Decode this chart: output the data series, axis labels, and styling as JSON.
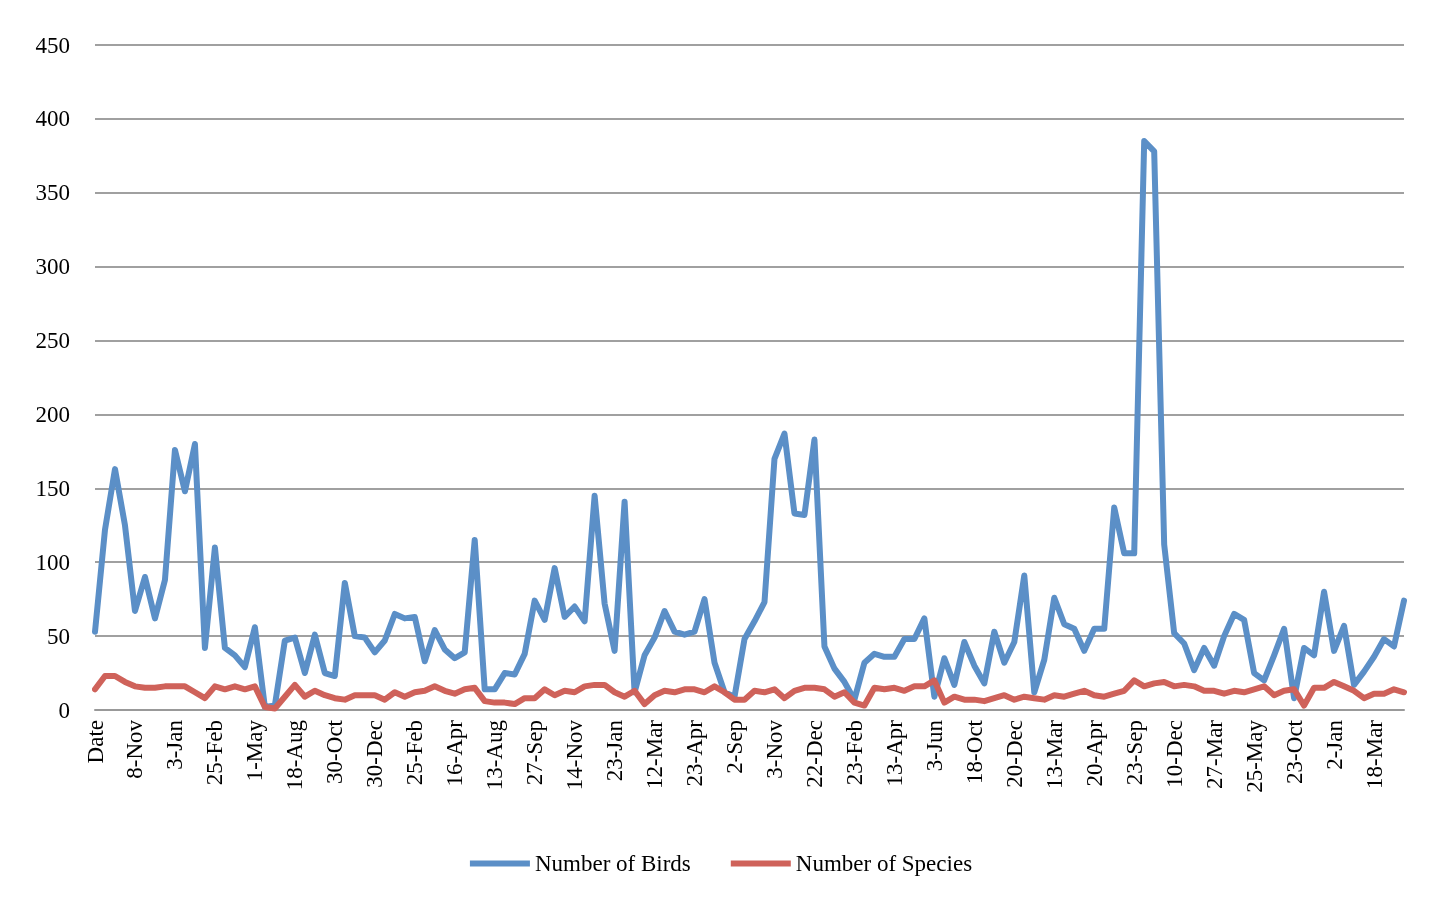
{
  "chart_data": {
    "type": "line",
    "categories": [
      "Date",
      null,
      null,
      null,
      "8-Nov",
      null,
      null,
      null,
      "3-Jan",
      null,
      null,
      null,
      "25-Feb",
      null,
      null,
      null,
      "1-May",
      null,
      null,
      null,
      "18-Aug",
      null,
      null,
      null,
      "30-Oct",
      null,
      null,
      null,
      "30-Dec",
      null,
      null,
      null,
      "25-Feb",
      null,
      null,
      null,
      "16-Apr",
      null,
      null,
      null,
      "13-Aug",
      null,
      null,
      null,
      "27-Sep",
      null,
      null,
      null,
      "14-Nov",
      null,
      null,
      null,
      "23-Jan",
      null,
      null,
      null,
      "12-Mar",
      null,
      null,
      null,
      "23-Apr",
      null,
      null,
      null,
      "2-Sep",
      null,
      null,
      null,
      "3-Nov",
      null,
      null,
      null,
      "22-Dec",
      null,
      null,
      null,
      "23-Feb",
      null,
      null,
      null,
      "13-Apr",
      null,
      null,
      null,
      "3-Jun",
      null,
      null,
      null,
      "18-Oct",
      null,
      null,
      null,
      "20-Dec",
      null,
      null,
      null,
      "13-Mar",
      null,
      null,
      null,
      "20-Apr",
      null,
      null,
      null,
      "23-Sep",
      null,
      null,
      null,
      "10-Dec",
      null,
      null,
      null,
      "27-Mar",
      null,
      null,
      null,
      "25-May",
      null,
      null,
      null,
      "23-Oct",
      null,
      null,
      null,
      "2-Jan",
      null,
      null,
      null,
      "18-Mar",
      null,
      null,
      null
    ],
    "series": [
      {
        "name": "Number of Birds",
        "color": "#5b8fc7",
        "values": [
          53,
          122,
          163,
          125,
          67,
          90,
          62,
          88,
          176,
          148,
          180,
          42,
          110,
          42,
          37,
          29,
          56,
          2,
          3,
          47,
          49,
          25,
          51,
          25,
          23,
          86,
          50,
          49,
          39,
          47,
          65,
          62,
          63,
          33,
          54,
          41,
          35,
          39,
          115,
          14,
          14,
          25,
          24,
          38,
          74,
          61,
          96,
          63,
          70,
          60,
          145,
          72,
          40,
          141,
          12,
          37,
          49,
          67,
          53,
          51,
          53,
          75,
          32,
          12,
          9,
          48,
          60,
          73,
          170,
          187,
          133,
          132,
          183,
          43,
          28,
          19,
          7,
          32,
          38,
          36,
          36,
          48,
          48,
          62,
          9,
          35,
          17,
          46,
          30,
          18,
          53,
          32,
          46,
          91,
          12,
          34,
          76,
          58,
          55,
          40,
          55,
          55,
          137,
          106,
          106,
          385,
          378,
          112,
          52,
          45,
          27,
          42,
          30,
          50,
          65,
          61,
          25,
          20,
          37,
          55,
          8,
          42,
          37,
          80,
          40,
          57,
          17,
          26,
          36,
          48,
          43,
          74
        ]
      },
      {
        "name": "Number of Species",
        "color": "#cf625a",
        "values": [
          14,
          23,
          23,
          19,
          16,
          15,
          15,
          16,
          16,
          16,
          12,
          8,
          16,
          14,
          16,
          14,
          16,
          2,
          1,
          9,
          17,
          9,
          13,
          10,
          8,
          7,
          10,
          10,
          10,
          7,
          12,
          9,
          12,
          13,
          16,
          13,
          11,
          14,
          15,
          6,
          5,
          5,
          4,
          8,
          8,
          14,
          10,
          13,
          12,
          16,
          17,
          17,
          12,
          9,
          13,
          4,
          10,
          13,
          12,
          14,
          14,
          12,
          16,
          12,
          7,
          7,
          13,
          12,
          14,
          8,
          13,
          15,
          15,
          14,
          9,
          12,
          5,
          3,
          15,
          14,
          15,
          13,
          16,
          16,
          20,
          5,
          9,
          7,
          7,
          6,
          8,
          10,
          7,
          9,
          8,
          7,
          10,
          9,
          11,
          13,
          10,
          9,
          11,
          13,
          20,
          16,
          18,
          19,
          16,
          17,
          16,
          13,
          13,
          11,
          13,
          12,
          14,
          16,
          10,
          13,
          14,
          3,
          15,
          15,
          19,
          16,
          13,
          8,
          11,
          11,
          14,
          12
        ]
      }
    ],
    "ylim": [
      0,
      450
    ],
    "yticks": [
      0,
      50,
      100,
      150,
      200,
      250,
      300,
      350,
      400,
      450
    ],
    "grid": "y",
    "legend": "bottom",
    "marker": "none",
    "line_style": "solid"
  }
}
